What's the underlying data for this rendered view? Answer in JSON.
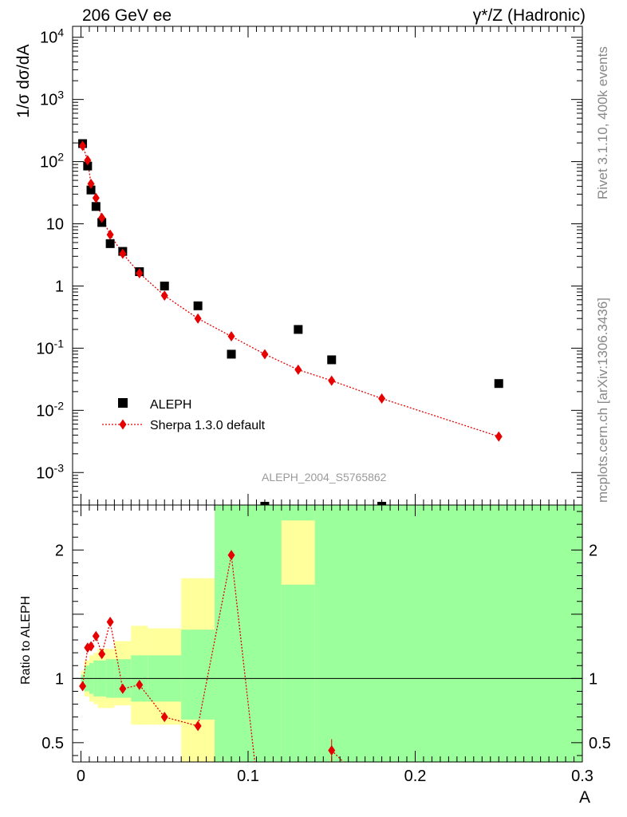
{
  "header": {
    "left_title": "206 GeV ee",
    "right_title": "γ*/Z (Hadronic)"
  },
  "side_labels": {
    "rivet": "Rivet 3.1.10,  400k events",
    "site": "mcplots.cern.ch [arXiv:1306.3436]"
  },
  "colors": {
    "data_marker": "#000000",
    "mc_marker": "#e60000",
    "band_inner": "#9bff9b",
    "band_outer": "#ffff9b",
    "watermark": "#9a9a9a"
  },
  "chart_data": [
    {
      "type": "scatter",
      "panel": "main",
      "ylabel": "1/σ  dσ/dA",
      "yscale": "log",
      "ylim": [
        0.0003,
        15000
      ],
      "xlim": [
        -0.005,
        0.3
      ],
      "yticks": [
        "10^-3",
        "10^-2",
        "10^-1",
        "1",
        "10",
        "10^2",
        "10^3",
        "10^4"
      ],
      "watermark": "ALEPH_2004_S5765862",
      "legend_position": "bottom-left",
      "series": [
        {
          "name": "ALEPH",
          "marker": "square",
          "x": [
            0.001,
            0.004,
            0.006,
            0.009,
            0.0125,
            0.0175,
            0.025,
            0.035,
            0.05,
            0.07,
            0.09,
            0.11,
            0.13,
            0.15,
            0.18,
            0.25
          ],
          "y": [
            195,
            85,
            35,
            19,
            10.5,
            4.8,
            3.6,
            1.7,
            1.0,
            0.48,
            0.08,
            0.0002,
            0.2,
            0.065,
            0.0002,
            0.027
          ]
        },
        {
          "name": "Sherpa 1.3.0 default",
          "marker": "diamond",
          "line": "dotted",
          "x": [
            0.001,
            0.004,
            0.006,
            0.009,
            0.0125,
            0.0175,
            0.025,
            0.035,
            0.05,
            0.07,
            0.09,
            0.11,
            0.13,
            0.15,
            0.18,
            0.25
          ],
          "y": [
            180,
            105,
            44,
            26,
            12.5,
            6.7,
            3.3,
            1.6,
            0.7,
            0.3,
            0.155,
            0.08,
            0.045,
            0.03,
            0.0155,
            0.0038
          ]
        }
      ]
    },
    {
      "type": "scatter",
      "panel": "ratio",
      "ylabel": "Ratio to ALEPH",
      "xlabel": "A",
      "ylim": [
        0.35,
        2.35
      ],
      "xlim": [
        -0.005,
        0.3
      ],
      "yticks": [
        "0.5",
        "1",
        "2"
      ],
      "xticks": [
        "0",
        "0.1",
        "0.2",
        "0.3"
      ],
      "reference_line": 1,
      "bands": [
        {
          "x": [
            0.0,
            0.002
          ],
          "inner": [
            0.97,
            1.03
          ],
          "outer": [
            0.95,
            1.06
          ]
        },
        {
          "x": [
            0.002,
            0.005
          ],
          "inner": [
            0.9,
            1.1
          ],
          "outer": [
            0.86,
            1.14
          ]
        },
        {
          "x": [
            0.005,
            0.0075
          ],
          "inner": [
            0.88,
            1.12
          ],
          "outer": [
            0.82,
            1.18
          ]
        },
        {
          "x": [
            0.0075,
            0.01
          ],
          "inner": [
            0.86,
            1.14
          ],
          "outer": [
            0.8,
            1.2
          ]
        },
        {
          "x": [
            0.01,
            0.015
          ],
          "inner": [
            0.86,
            1.14
          ],
          "outer": [
            0.77,
            1.23
          ]
        },
        {
          "x": [
            0.015,
            0.02
          ],
          "inner": [
            0.85,
            1.15
          ],
          "outer": [
            0.77,
            1.23
          ]
        },
        {
          "x": [
            0.02,
            0.03
          ],
          "inner": [
            0.85,
            1.15
          ],
          "outer": [
            0.79,
            1.29
          ]
        },
        {
          "x": [
            0.03,
            0.04
          ],
          "inner": [
            0.82,
            1.18
          ],
          "outer": [
            0.64,
            1.41
          ]
        },
        {
          "x": [
            0.04,
            0.06
          ],
          "inner": [
            0.82,
            1.18
          ],
          "outer": [
            0.64,
            1.39
          ]
        },
        {
          "x": [
            0.06,
            0.08
          ],
          "inner": [
            0.68,
            1.38
          ],
          "outer": [
            0.35,
            1.78
          ]
        },
        {
          "x": [
            0.08,
            0.12
          ],
          "inner": [
            0.35,
            2.35
          ],
          "outer": [
            0.35,
            2.35
          ]
        },
        {
          "x": [
            0.12,
            0.14
          ],
          "inner": [
            0.35,
            2.35
          ],
          "outer": [
            0.35,
            2.35
          ],
          "hole": [
            1.73,
            2.23
          ]
        },
        {
          "x": [
            0.14,
            0.3
          ],
          "inner": [
            0.35,
            2.35
          ],
          "outer": [
            0.35,
            2.35
          ]
        }
      ],
      "series": [
        {
          "name": "Sherpa 1.3.0 default",
          "marker": "diamond",
          "line": "dotted",
          "x": [
            0.001,
            0.004,
            0.006,
            0.009,
            0.0125,
            0.0175,
            0.025,
            0.035,
            0.05,
            0.07,
            0.09,
            0.15
          ],
          "y": [
            0.94,
            1.24,
            1.25,
            1.33,
            1.19,
            1.44,
            0.92,
            0.95,
            0.7,
            0.63,
            1.96,
            0.44
          ]
        }
      ]
    }
  ]
}
